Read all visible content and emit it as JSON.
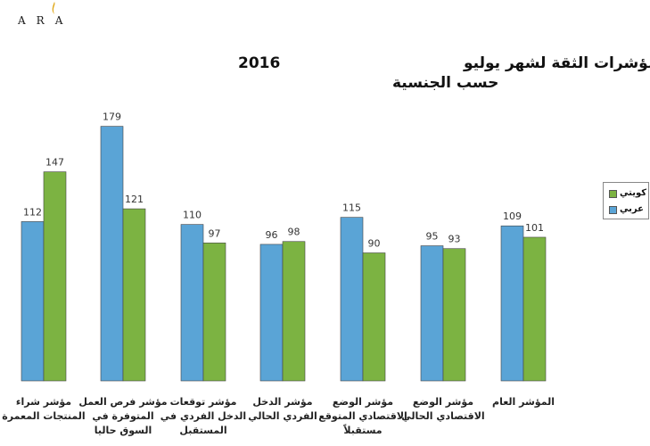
{
  "logo": {
    "text": "ARA"
  },
  "chart_data": {
    "type": "bar",
    "title": "مؤشرات الثقة لشهر يوليو",
    "title_year": "2016",
    "subtitle": "حسب الجنسية",
    "categories": [
      [
        "مؤشر شراء",
        "المنتجات المعمرة"
      ],
      [
        "مؤشر فرص العمل",
        "المتوفرة في",
        "السوق حاليا"
      ],
      [
        "مؤشر توقعات",
        "الدخل الفردي في",
        "المستقبل"
      ],
      [
        "مؤشر الدخل",
        "الفردي الحالي"
      ],
      [
        "مؤشر الوضع",
        "الاقتصادي المتوقع",
        "مستقبلاً"
      ],
      [
        "مؤشر الوضع",
        "الاقتصادي الحالي"
      ],
      [
        "المؤشر العام"
      ]
    ],
    "series": [
      {
        "name": "عربي",
        "color": "#5aa4d6",
        "values": [
          112,
          179,
          110,
          96,
          115,
          95,
          109
        ]
      },
      {
        "name": "كويتي",
        "color": "#7cb342",
        "values": [
          147,
          121,
          97,
          98,
          90,
          93,
          101
        ]
      }
    ],
    "ylim": [
      0,
      180
    ],
    "legend_position": "right",
    "grid": false
  }
}
